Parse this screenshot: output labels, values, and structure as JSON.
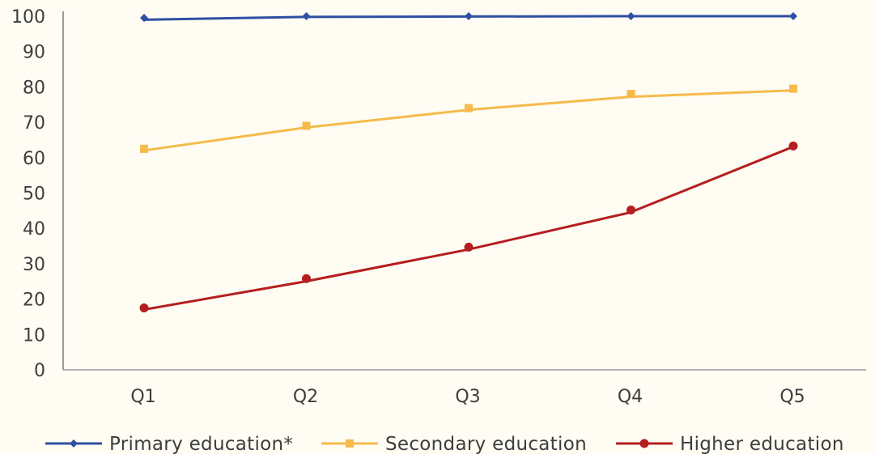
{
  "chart_data": {
    "type": "line",
    "categories": [
      "Q1",
      "Q2",
      "Q3",
      "Q4",
      "Q5"
    ],
    "y_ticks": [
      "0",
      "10",
      "20",
      "30",
      "40",
      "50",
      "60",
      "70",
      "80",
      "90",
      "100"
    ],
    "ylim": [
      0,
      100
    ],
    "grid": false,
    "legend_position": "bottom",
    "series": [
      {
        "name": "Primary education*",
        "color": "#2e4fa2",
        "marker": "diamond",
        "values": [
          99.5,
          100,
          100,
          100,
          100
        ],
        "fit": [
          99,
          99.8,
          99.9,
          100,
          100
        ]
      },
      {
        "name": "Secondary education",
        "color": "#f6bb4b",
        "marker": "square",
        "values": [
          62.5,
          69,
          74,
          78,
          79.5
        ],
        "fit": [
          62,
          68.5,
          73.5,
          77.2,
          79
        ]
      },
      {
        "name": "Higher education",
        "color": "#b41e1e",
        "marker": "circle",
        "values": [
          17.5,
          25.8,
          34.7,
          45.2,
          63.3
        ],
        "fit": [
          17,
          25,
          34,
          44.5,
          63
        ]
      }
    ]
  }
}
